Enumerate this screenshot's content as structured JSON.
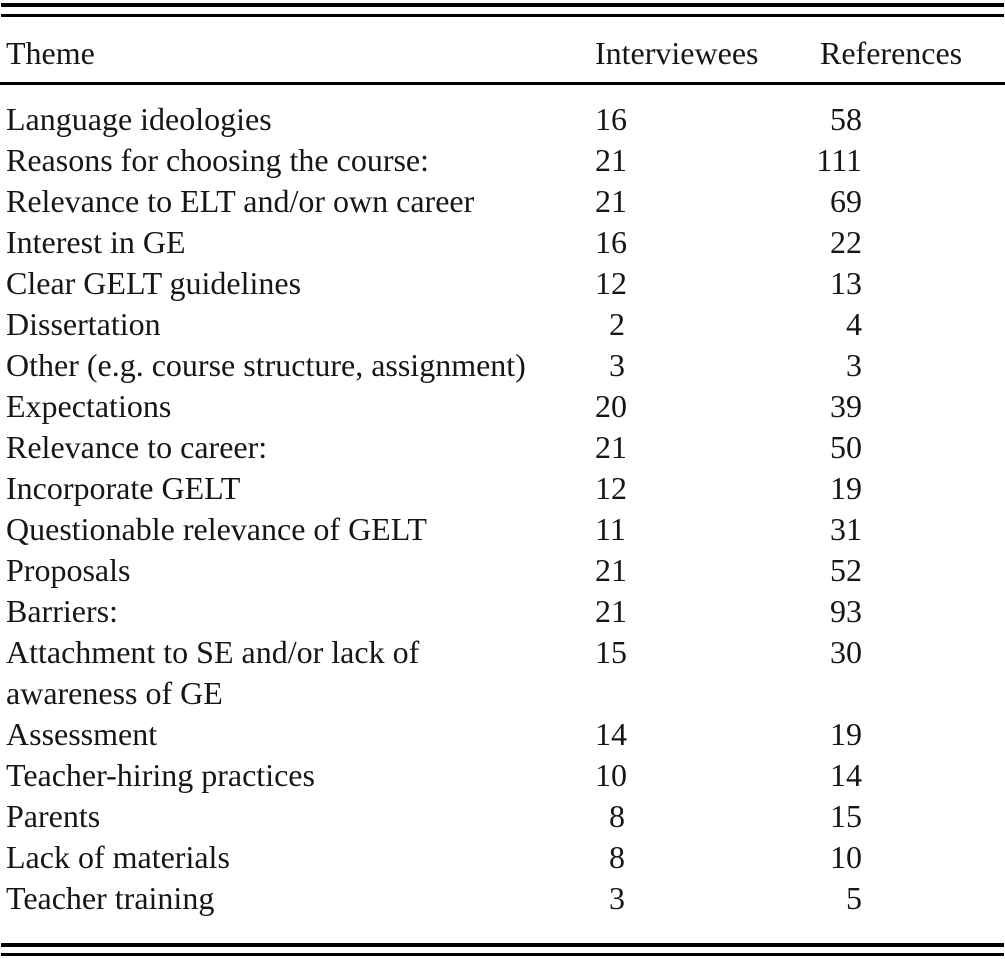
{
  "table": {
    "headers": {
      "theme": "Theme",
      "interviewees": "Interviewees",
      "references": "References"
    },
    "rows": [
      {
        "theme": "Language ideologies",
        "interviewees": "16",
        "references": "58",
        "bold": true
      },
      {
        "theme": "Reasons for choosing the course:",
        "interviewees": "21",
        "references": "111",
        "bold": true
      },
      {
        "theme": "Relevance to ELT and/or own career",
        "interviewees": "21",
        "references": "69",
        "bold": false
      },
      {
        "theme": "Interest in GE",
        "interviewees": "16",
        "references": "22",
        "bold": false
      },
      {
        "theme": "Clear GELT guidelines",
        "interviewees": "12",
        "references": "13",
        "bold": false
      },
      {
        "theme": "Dissertation",
        "interviewees": "2",
        "references": "4",
        "bold": false
      },
      {
        "theme": "Other (e.g. course structure, assignment)",
        "interviewees": "3",
        "references": "3",
        "bold": false
      },
      {
        "theme": "Expectations",
        "interviewees": "20",
        "references": "39",
        "bold": true
      },
      {
        "theme": "Relevance to career:",
        "interviewees": "21",
        "references": "50",
        "bold": true
      },
      {
        "theme": "Incorporate GELT",
        "interviewees": "12",
        "references": "19",
        "bold": false
      },
      {
        "theme": "Questionable relevance of GELT",
        "interviewees": "11",
        "references": "31",
        "bold": false
      },
      {
        "theme": "Proposals",
        "interviewees": "21",
        "references": "52",
        "bold": true
      },
      {
        "theme": "Barriers:",
        "interviewees": "21",
        "references": "93",
        "bold": true
      },
      {
        "theme": "Attachment to SE and/or lack of",
        "theme_line2": "awareness of GE",
        "interviewees": "15",
        "references": "30",
        "bold": false
      },
      {
        "theme": "Assessment",
        "interviewees": "14",
        "references": "19",
        "bold": false
      },
      {
        "theme": "Teacher-hiring practices",
        "interviewees": "10",
        "references": "14",
        "bold": false
      },
      {
        "theme": "Parents",
        "interviewees": "8",
        "references": "15",
        "bold": false
      },
      {
        "theme": "Lack of materials",
        "interviewees": "8",
        "references": "10",
        "bold": false
      },
      {
        "theme": "Teacher training",
        "interviewees": "3",
        "references": "5",
        "bold": false
      }
    ]
  },
  "colors": {
    "text": "#161616",
    "rule": "#000000",
    "background": "#ffffff"
  }
}
